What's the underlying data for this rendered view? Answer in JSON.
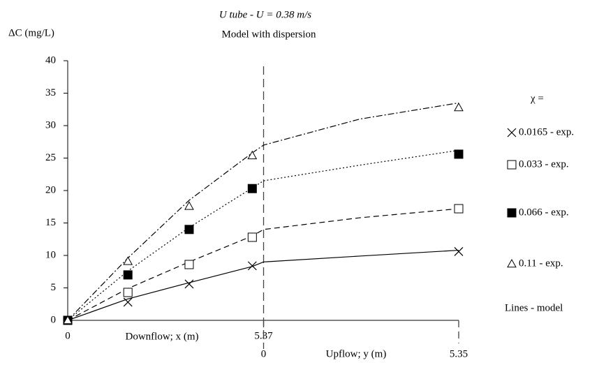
{
  "chart_data": {
    "type": "line",
    "title": "U tube -  U = 0.38  m/s",
    "subtitle": "Model with dispersion",
    "y_label": "ΔC (mg/L)",
    "x_label": "Downflow;  x (m)",
    "x2_label": "Upflow;  y (m)",
    "ylim": [
      0,
      40
    ],
    "yticks": [
      0,
      5,
      10,
      15,
      20,
      25,
      30,
      35,
      40
    ],
    "xlim": [
      0,
      10.72
    ],
    "xticks": [
      0,
      5.37
    ],
    "x2ticks": [
      {
        "value": 5.37,
        "label": "0"
      },
      {
        "value": 10.72,
        "label": "5.35"
      }
    ],
    "legend_title": "χ =",
    "legend_note": "Lines - model",
    "series": [
      {
        "name": "0.0165 - exp.",
        "marker": "cross",
        "color": "#000000",
        "dash": "",
        "x": [
          0,
          1.65,
          3.33,
          5.06,
          10.72
        ],
        "values": [
          0,
          2.8,
          5.6,
          8.4,
          10.6
        ],
        "model_x": [
          0,
          1.65,
          3.33,
          5.06,
          5.37,
          8,
          10.72
        ],
        "model_values": [
          0,
          3.3,
          5.8,
          8.3,
          9.0,
          9.9,
          10.8
        ]
      },
      {
        "name": "0.033 - exp.",
        "marker": "square-open",
        "color": "#000000",
        "dash": "8 5",
        "x": [
          0,
          1.65,
          3.33,
          5.06,
          10.72
        ],
        "values": [
          0,
          4.3,
          8.6,
          12.8,
          17.2
        ],
        "model_x": [
          0,
          1.65,
          3.33,
          5.06,
          5.37,
          8,
          10.72
        ],
        "model_values": [
          0,
          4.9,
          9.0,
          13.0,
          14.0,
          15.8,
          17.2
        ]
      },
      {
        "name": "0.066 - exp.",
        "marker": "square-filled",
        "color": "#000000",
        "dash": "2 3",
        "x": [
          0,
          1.65,
          3.33,
          5.06,
          10.72
        ],
        "values": [
          0,
          7.0,
          14.0,
          20.3,
          25.6
        ],
        "model_x": [
          0,
          1.65,
          3.33,
          5.06,
          5.37,
          8,
          10.72
        ],
        "model_values": [
          0,
          7.6,
          14.3,
          20.4,
          21.5,
          23.9,
          26.2
        ]
      },
      {
        "name": "0.11 - exp.",
        "marker": "triangle-open",
        "color": "#000000",
        "dash": "9 3 2 3",
        "x": [
          0,
          1.65,
          3.33,
          5.06,
          10.72
        ],
        "values": [
          0,
          9.1,
          17.6,
          25.4,
          32.8
        ],
        "model_x": [
          0,
          1.65,
          3.33,
          5.06,
          5.37,
          8,
          10.72
        ],
        "model_values": [
          0,
          9.6,
          18.5,
          25.8,
          27.0,
          31.0,
          33.5
        ]
      }
    ]
  }
}
